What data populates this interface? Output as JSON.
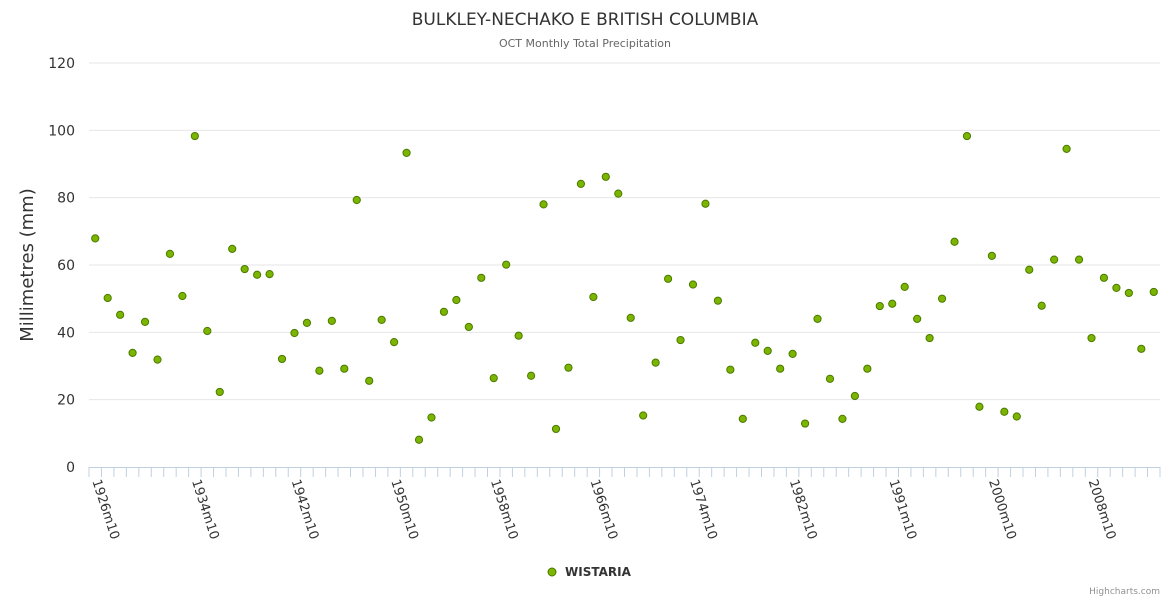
{
  "chart_data": {
    "type": "scatter",
    "title": "BULKLEY-NECHAKO E BRITISH COLUMBIA",
    "subtitle": "OCT Monthly Total Precipitation",
    "xlabel": "",
    "ylabel": "Millimetres (mm)",
    "ylim": [
      0,
      120
    ],
    "yticks": [
      0,
      20,
      40,
      60,
      80,
      100,
      120
    ],
    "grid": true,
    "legend_placement": "bottom-center",
    "label_every": 8,
    "categories": [
      "1926m10",
      "1927m10",
      "1928m10",
      "1929m10",
      "1930m10",
      "1931m10",
      "1932m10",
      "1933m10",
      "1934m10",
      "1935m10",
      "1936m10",
      "1937m10",
      "1938m10",
      "1939m10",
      "1940m10",
      "1941m10",
      "1942m10",
      "1943m10",
      "1944m10",
      "1945m10",
      "1946m10",
      "1947m10",
      "1948m10",
      "1949m10",
      "1950m10",
      "1951m10",
      "1952m10",
      "1953m10",
      "1954m10",
      "1955m10",
      "1956m10",
      "1957m10",
      "1958m10",
      "1959m10",
      "1960m10",
      "1961m10",
      "1962m10",
      "1963m10",
      "1964m10",
      "1965m10",
      "1966m10",
      "1967m10",
      "1968m10",
      "1969m10",
      "1970m10",
      "1971m10",
      "1972m10",
      "1973m10",
      "1974m10",
      "1975m10",
      "1976m10",
      "1977m10",
      "1978m10",
      "1979m10",
      "1980m10",
      "1981m10",
      "1982m10",
      "1983m10",
      "1984m10",
      "1986m10",
      "1987m10",
      "1988m10",
      "1989m10",
      "1990m10",
      "1991m10",
      "1992m10",
      "1993m10",
      "1995m10",
      "1996m10",
      "1997m10",
      "1998m10",
      "1999m10",
      "2000m10",
      "2001m10",
      "2002m10",
      "2003m10",
      "2004m10",
      "2005m10",
      "2006m10",
      "2007m10",
      "2008m10",
      "2009m10",
      "2010m10",
      "2011m10",
      "2012m10",
      "2013m10"
    ],
    "series": [
      {
        "name": "WISTARIA",
        "color": "#7cb500",
        "values": [
          67.9,
          50.2,
          45.2,
          33.9,
          43.1,
          31.9,
          63.3,
          50.8,
          98.3,
          40.4,
          22.3,
          64.8,
          58.8,
          57.1,
          57.3,
          32.1,
          39.8,
          42.8,
          28.6,
          43.4,
          29.2,
          79.3,
          25.6,
          43.7,
          37.1,
          93.3,
          8.1,
          14.7,
          46.1,
          49.6,
          41.6,
          56.2,
          26.4,
          60.1,
          39.0,
          27.1,
          78.0,
          11.3,
          29.5,
          84.1,
          50.5,
          86.2,
          81.2,
          44.3,
          15.3,
          31.0,
          55.9,
          37.7,
          54.2,
          78.2,
          49.4,
          28.9,
          14.3,
          36.9,
          34.5,
          29.2,
          33.6,
          12.9,
          44.0,
          26.2,
          14.3,
          21.1,
          29.2,
          47.8,
          48.5,
          53.5,
          44.0,
          38.3,
          50.0,
          66.9,
          98.3,
          17.9,
          62.7,
          16.4,
          15.0,
          58.6,
          47.9,
          61.6,
          94.5,
          61.6,
          38.3,
          56.2,
          53.2,
          51.7,
          35.1,
          52.0
        ]
      }
    ]
  },
  "credits": "Highcharts.com"
}
